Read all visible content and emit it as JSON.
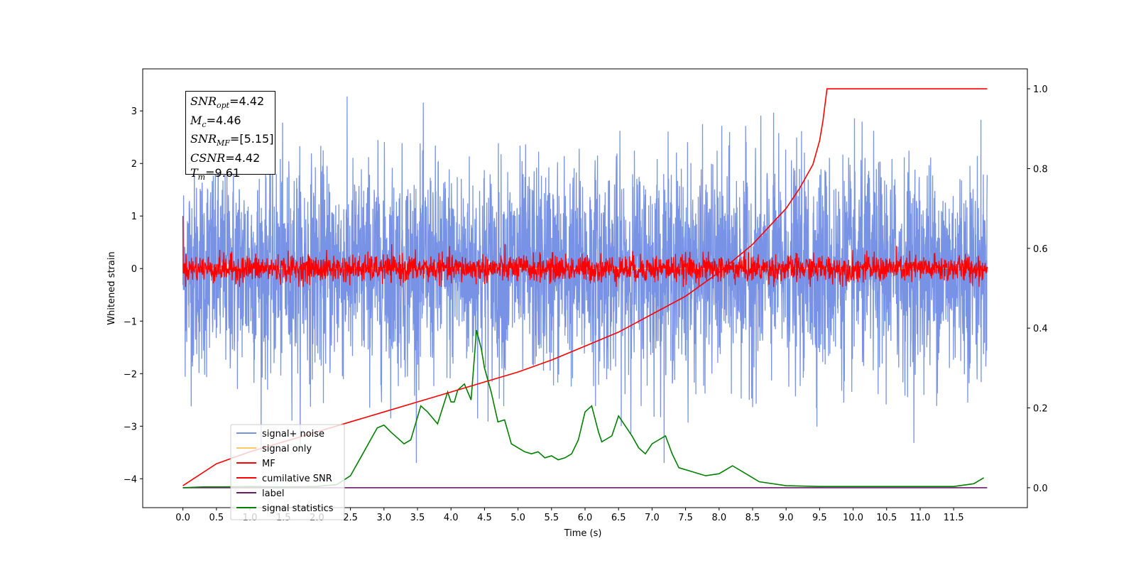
{
  "chart_data": {
    "type": "line",
    "title": "",
    "xlabel": "Time (s)",
    "ylabel": "Whitened strain",
    "ylabel_right": "",
    "xlim": [
      -0.6,
      12.6
    ],
    "ylim": [
      -4.55,
      3.8
    ],
    "ylim_right": [
      -0.05,
      1.05
    ],
    "x_ticks": [
      "0.0",
      "0.5",
      "1.0",
      "1.5",
      "2.0",
      "2.5",
      "3.0",
      "3.5",
      "4.0",
      "4.5",
      "5.0",
      "5.5",
      "6.0",
      "6.5",
      "7.0",
      "7.5",
      "8.0",
      "8.5",
      "9.0",
      "9.5",
      "10.0",
      "10.5",
      "11.0",
      "11.5"
    ],
    "x_tick_values": [
      0.0,
      0.5,
      1.0,
      1.5,
      2.0,
      2.5,
      3.0,
      3.5,
      4.0,
      4.5,
      5.0,
      5.5,
      6.0,
      6.5,
      7.0,
      7.5,
      8.0,
      8.5,
      9.0,
      9.5,
      10.0,
      10.5,
      11.0,
      11.5
    ],
    "y_ticks": [
      "−4",
      "−3",
      "−2",
      "−1",
      "0",
      "1",
      "2",
      "3"
    ],
    "y_tick_values": [
      -4,
      -3,
      -2,
      -1,
      0,
      1,
      2,
      3
    ],
    "y_right_ticks": [
      "0.0",
      "0.2",
      "0.4",
      "0.6",
      "0.8",
      "1.0"
    ],
    "y_right_tick_values": [
      0.0,
      0.2,
      0.4,
      0.6,
      0.8,
      1.0
    ],
    "grid": false,
    "legend_position": "lower-left",
    "series": [
      {
        "name": "signal+ noise",
        "color": "#7893e6",
        "axis": "left",
        "description_range": [
          -3.7,
          3.4
        ]
      },
      {
        "name": "signal only",
        "color": "#ffc864",
        "axis": "left",
        "x": [
          0.0,
          12.0
        ],
        "y": [
          0.0,
          0.0
        ]
      },
      {
        "name": "MF",
        "color": "#ff0000",
        "axis": "left",
        "description_range": [
          -0.35,
          1.0
        ]
      },
      {
        "name": "cumilative SNR",
        "color": "#ff0000",
        "axis": "right",
        "x": [
          0.0,
          0.5,
          1.0,
          1.5,
          2.0,
          2.5,
          3.0,
          3.5,
          4.0,
          4.5,
          5.0,
          5.5,
          6.0,
          6.5,
          7.0,
          7.5,
          8.0,
          8.5,
          9.0,
          9.2,
          9.4,
          9.5,
          9.55,
          9.61,
          12.0
        ],
        "y": [
          0.005,
          0.06,
          0.09,
          0.115,
          0.14,
          0.165,
          0.19,
          0.215,
          0.24,
          0.265,
          0.29,
          0.32,
          0.355,
          0.39,
          0.435,
          0.48,
          0.54,
          0.61,
          0.7,
          0.75,
          0.81,
          0.87,
          0.92,
          1.0,
          1.0
        ]
      },
      {
        "name": "label",
        "color": "#6a1b6a",
        "axis": "right",
        "x": [
          0.0,
          12.0
        ],
        "y": [
          0.0,
          0.0
        ]
      },
      {
        "name": "signal statistics",
        "color": "#008000",
        "axis": "right",
        "x": [
          0.0,
          0.3,
          0.6,
          1.0,
          1.5,
          2.0,
          2.3,
          2.5,
          2.65,
          2.8,
          2.9,
          3.0,
          3.1,
          3.2,
          3.3,
          3.4,
          3.55,
          3.65,
          3.8,
          3.95,
          4.0,
          4.05,
          4.1,
          4.2,
          4.3,
          4.38,
          4.45,
          4.5,
          4.6,
          4.7,
          4.8,
          4.9,
          5.0,
          5.1,
          5.2,
          5.3,
          5.4,
          5.5,
          5.6,
          5.7,
          5.8,
          5.9,
          6.0,
          6.1,
          6.2,
          6.25,
          6.3,
          6.4,
          6.5,
          6.6,
          6.7,
          6.8,
          6.9,
          7.0,
          7.1,
          7.2,
          7.3,
          7.4,
          7.6,
          7.8,
          8.0,
          8.2,
          8.4,
          8.6,
          9.0,
          9.5,
          10.0,
          10.5,
          11.0,
          11.5,
          11.8,
          11.95
        ],
        "y": [
          0.0,
          0.002,
          0.002,
          0.003,
          0.002,
          0.003,
          0.008,
          0.03,
          0.075,
          0.12,
          0.15,
          0.157,
          0.14,
          0.125,
          0.11,
          0.12,
          0.205,
          0.19,
          0.16,
          0.24,
          0.215,
          0.215,
          0.245,
          0.26,
          0.22,
          0.395,
          0.35,
          0.3,
          0.24,
          0.165,
          0.17,
          0.11,
          0.1,
          0.09,
          0.085,
          0.09,
          0.075,
          0.08,
          0.07,
          0.075,
          0.085,
          0.12,
          0.19,
          0.205,
          0.14,
          0.115,
          0.12,
          0.13,
          0.18,
          0.155,
          0.13,
          0.1,
          0.085,
          0.11,
          0.12,
          0.13,
          0.085,
          0.05,
          0.04,
          0.03,
          0.035,
          0.055,
          0.035,
          0.015,
          0.005,
          0.003,
          0.003,
          0.003,
          0.003,
          0.003,
          0.01,
          0.025
        ]
      }
    ]
  },
  "info_box": {
    "snr_opt_label": "SNR",
    "snr_opt_sub": "opt",
    "snr_opt_value": "=4.42",
    "mc_label": "M",
    "mc_sub": "c",
    "mc_value": "=4.46",
    "snr_mf_label": "SNR",
    "snr_mf_sub": "MF",
    "snr_mf_value": "=[5.15]",
    "csnr_label": "CSNR",
    "csnr_value": "=4.42",
    "tm_label": "T",
    "tm_sub": "m",
    "tm_value": "=9.61"
  }
}
